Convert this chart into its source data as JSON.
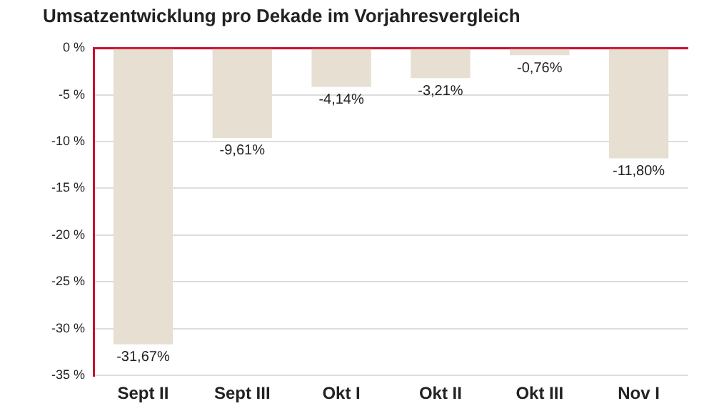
{
  "chart_data": {
    "type": "bar",
    "title": "Umsatzentwicklung pro Dekade im Vorjahresvergleich",
    "categories": [
      "Sept II",
      "Sept III",
      "Okt I",
      "Okt II",
      "Okt III",
      "Nov I"
    ],
    "values": [
      -31.67,
      -9.61,
      -4.14,
      -3.21,
      -0.76,
      -11.8
    ],
    "value_labels": [
      "-31,67%",
      "-9,61%",
      "-4,14%",
      "-3,21%",
      "-0,76%",
      "-11,80%"
    ],
    "color": "#e6dfd2",
    "ylim": [
      -35,
      0
    ],
    "yticks": [
      {
        "value": 0,
        "label": "0 %"
      },
      {
        "value": -5,
        "label": "-5 %"
      },
      {
        "value": -10,
        "label": "-10 %"
      },
      {
        "value": -15,
        "label": "-15 %"
      },
      {
        "value": -20,
        "label": "-20 %"
      },
      {
        "value": -25,
        "label": "-25 %"
      },
      {
        "value": -30,
        "label": "-30 %"
      },
      {
        "value": -35,
        "label": "-35 %"
      }
    ],
    "grid": "y",
    "legend": false
  }
}
